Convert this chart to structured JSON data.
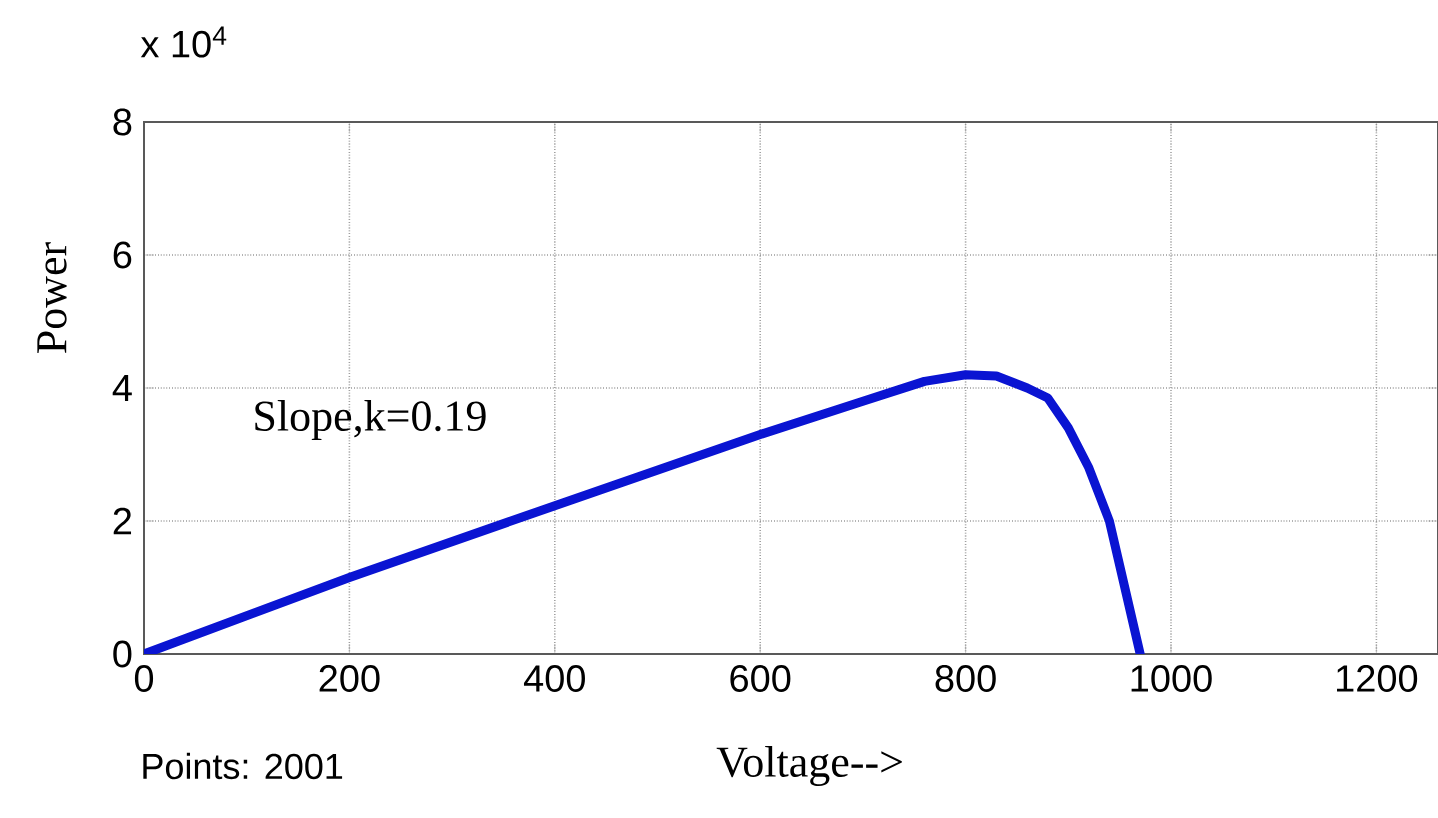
{
  "chart_data": {
    "type": "line",
    "xlabel": "Voltage-->",
    "ylabel": "Power",
    "annotations": [
      "x 10$^{4}$",
      "Slope,k=0.19",
      "Points: 2001"
    ],
    "series": [
      {
        "color": "#0a14d2",
        "x": [
          0,
          200,
          400,
          600,
          700,
          760,
          800,
          830,
          860,
          880,
          900,
          920,
          940,
          955,
          970
        ],
        "values": [
          0,
          1.15,
          2.23,
          3.3,
          3.8,
          4.1,
          4.2,
          4.18,
          4.0,
          3.85,
          3.4,
          2.8,
          2.0,
          1.0,
          0
        ]
      }
    ],
    "xlim": [
      0,
      1260
    ],
    "xticks": [
      0,
      200,
      400,
      600,
      800,
      1000,
      1200
    ],
    "ylim": [
      0,
      8
    ],
    "yticks": [
      0,
      2,
      4,
      6,
      8
    ],
    "grid": true,
    "marker": "none",
    "line_style": "solid"
  }
}
